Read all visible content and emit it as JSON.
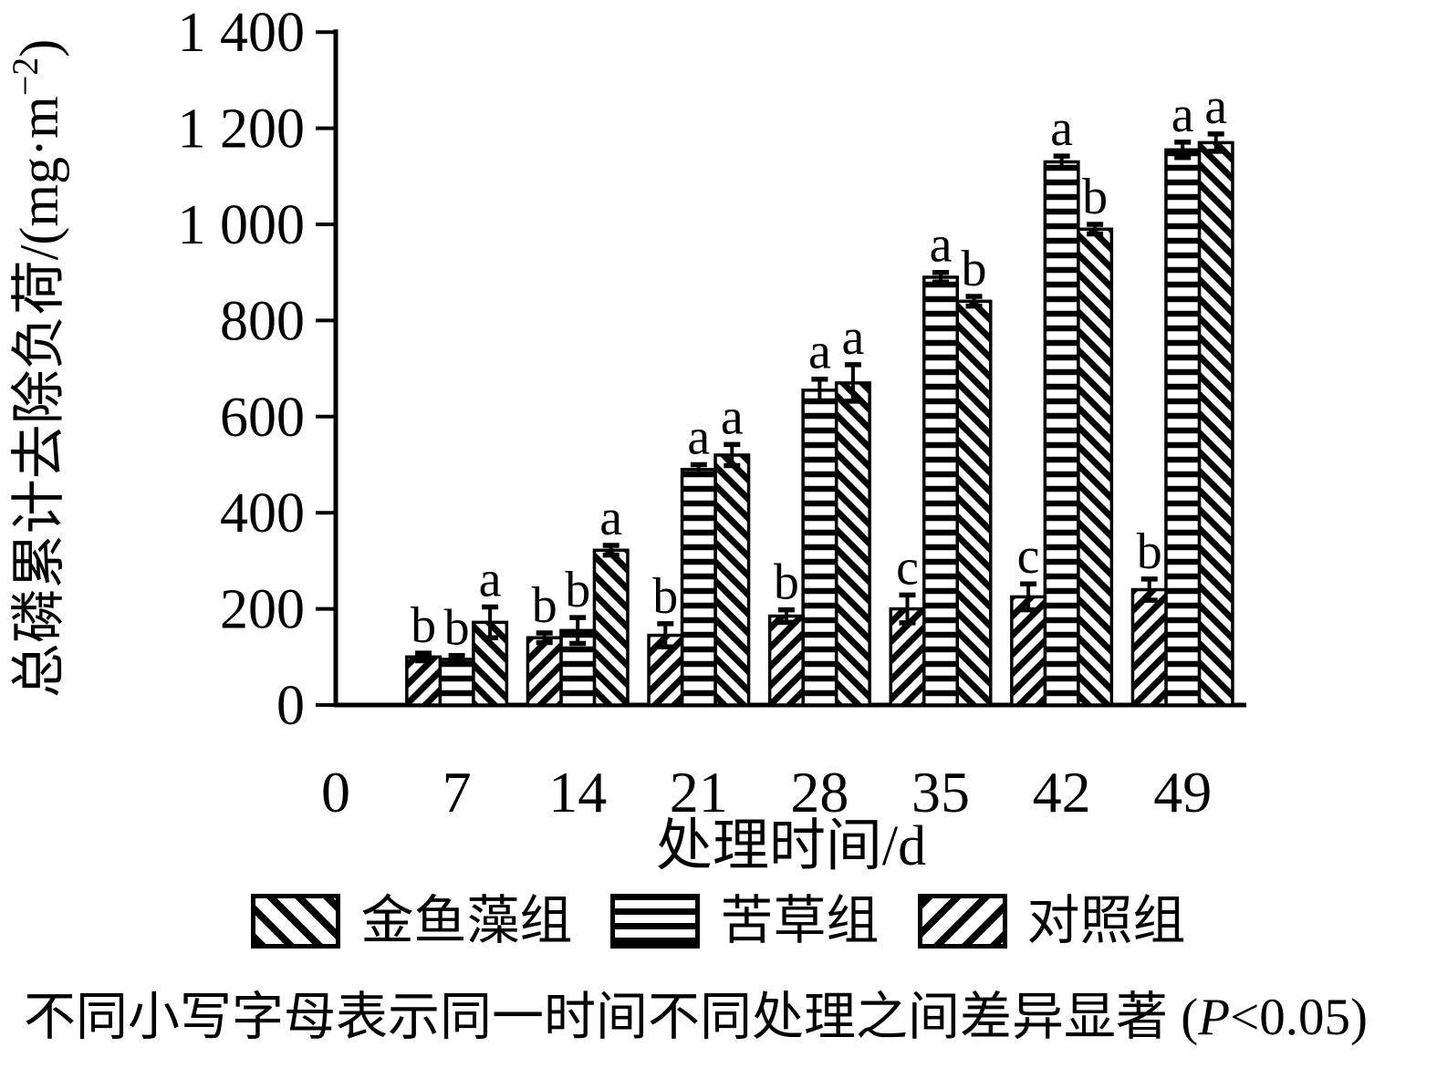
{
  "figure": {
    "background": "#ffffff",
    "ink": "#000000"
  },
  "chart_data": {
    "type": "bar",
    "title": "",
    "xlabel": "处理时间/d",
    "ylabel": "总磷累计去除负荷/(mg·m−2)",
    "ylabel_main": "总磷累计去除负荷/(mg·m",
    "ylabel_sup": "−2",
    "ylabel_close": ")",
    "x_categories": [
      "0",
      "7",
      "14",
      "21",
      "28",
      "35",
      "42",
      "49"
    ],
    "bar_days": [
      "7",
      "14",
      "21",
      "28",
      "35",
      "42",
      "49"
    ],
    "ylim": [
      0,
      1400
    ],
    "grid": false,
    "legend_position": "bottom",
    "y_ticks": [
      {
        "value": 0,
        "label": "0"
      },
      {
        "value": 200,
        "label": "200"
      },
      {
        "value": 400,
        "label": "400"
      },
      {
        "value": 600,
        "label": "600"
      },
      {
        "value": 800,
        "label": "800"
      },
      {
        "value": 1000,
        "label": "1 000"
      },
      {
        "value": 1200,
        "label": "1 200"
      },
      {
        "value": 1400,
        "label": "1 400"
      }
    ],
    "series": [
      {
        "name": "金鱼藻组",
        "hatch": "diagonal-down",
        "cluster_position": 3,
        "values": [
          172,
          322,
          520,
          670,
          840,
          990,
          1170
        ],
        "errors": [
          32,
          10,
          22,
          38,
          10,
          10,
          18
        ],
        "letters": [
          "a",
          "a",
          "a",
          "a",
          "b",
          "b",
          "a"
        ]
      },
      {
        "name": "苦草组",
        "hatch": "horizontal",
        "cluster_position": 2,
        "values": [
          95,
          155,
          490,
          655,
          890,
          1130,
          1155
        ],
        "errors": [
          8,
          27,
          10,
          23,
          10,
          12,
          16
        ],
        "letters": [
          "b",
          "b",
          "a",
          "a",
          "a",
          "a",
          "a"
        ]
      },
      {
        "name": "对照组",
        "hatch": "diagonal-up",
        "cluster_position": 1,
        "values": [
          100,
          140,
          145,
          185,
          200,
          225,
          240
        ],
        "errors": [
          8,
          10,
          24,
          13,
          29,
          27,
          22
        ],
        "letters": [
          "b",
          "b",
          "b",
          "b",
          "c",
          "c",
          "b"
        ]
      }
    ]
  },
  "legend": {
    "items": [
      {
        "label": "金鱼藻组",
        "swatch": "diagonal-down"
      },
      {
        "label": "苦草组",
        "swatch": "horizontal"
      },
      {
        "label": "对照组",
        "swatch": "diagonal-up"
      }
    ]
  },
  "caption": {
    "prefix": "不同小写字母表示同一时间不同处理之间差异显著 (",
    "p": "P",
    "suffix": "<0.05)"
  }
}
